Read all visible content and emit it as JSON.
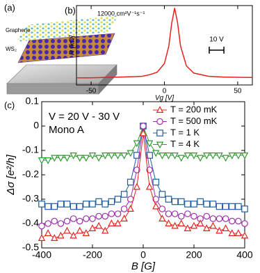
{
  "illustration": {
    "label": "(a)",
    "layers": [
      "Graphene",
      "WS₂"
    ]
  },
  "chart_data": [
    {
      "type": "line",
      "label": "(b)",
      "annotation": "12000 cm²V⁻¹s⁻¹",
      "scale_bar": {
        "value": 10,
        "label": "10 V"
      },
      "xlabel": "Vg [V]",
      "ylabel": "R [kΩ]",
      "x": [
        -60,
        -50,
        -40,
        -30,
        -20,
        -15,
        -10,
        -5,
        0,
        3,
        5,
        7,
        9,
        11,
        15,
        20,
        30,
        40,
        50,
        60
      ],
      "series": [
        {
          "name": null,
          "color": "#e8211c",
          "values": [
            0.09,
            0.09,
            0.095,
            0.1,
            0.105,
            0.11,
            0.13,
            0.16,
            0.27,
            0.49,
            0.78,
            0.97,
            0.78,
            0.49,
            0.24,
            0.15,
            0.11,
            0.1,
            0.096,
            0.094
          ]
        }
      ],
      "xlim": [
        -60,
        60
      ],
      "xticks": [
        -50,
        0,
        50
      ],
      "ylim": [
        0,
        1
      ]
    },
    {
      "type": "line",
      "label": "(c)",
      "annotations": [
        "V = 20 V - 30 V",
        "Mono A"
      ],
      "xlabel": "B [G]",
      "ylabel": "Δσ [e²/h]",
      "x": [
        -400,
        -375,
        -350,
        -325,
        -300,
        -275,
        -250,
        -225,
        -200,
        -175,
        -150,
        -125,
        -100,
        -75,
        -50,
        -25,
        0,
        25,
        50,
        75,
        100,
        125,
        150,
        175,
        200,
        225,
        250,
        275,
        300,
        325,
        350,
        375,
        400
      ],
      "series": [
        {
          "name": "T = 200 mK",
          "color": "#e8211c",
          "marker": "triangle-up",
          "values": [
            -0.46,
            -0.44,
            -0.46,
            -0.45,
            -0.43,
            -0.45,
            -0.43,
            -0.44,
            -0.42,
            -0.41,
            -0.43,
            -0.4,
            -0.4,
            -0.38,
            -0.34,
            -0.25,
            -0.03,
            -0.25,
            -0.33,
            -0.38,
            -0.4,
            -0.41,
            -0.4,
            -0.42,
            -0.41,
            -0.4,
            -0.42,
            -0.41,
            -0.43,
            -0.42,
            -0.44,
            -0.44,
            -0.45
          ]
        },
        {
          "name": "T = 500 mK",
          "color": "#9b2fae",
          "marker": "circle",
          "values": [
            -0.41,
            -0.4,
            -0.39,
            -0.4,
            -0.39,
            -0.38,
            -0.39,
            -0.38,
            -0.38,
            -0.37,
            -0.37,
            -0.36,
            -0.36,
            -0.34,
            -0.3,
            -0.18,
            0,
            -0.18,
            -0.3,
            -0.34,
            -0.36,
            -0.36,
            -0.37,
            -0.36,
            -0.37,
            -0.38,
            -0.37,
            -0.38,
            -0.38,
            -0.38,
            -0.39,
            -0.39,
            -0.4
          ]
        },
        {
          "name": "T = 1 K",
          "color": "#1f5b9e",
          "marker": "square",
          "values": [
            -0.32,
            -0.33,
            -0.33,
            -0.32,
            -0.32,
            -0.33,
            -0.33,
            -0.32,
            -0.32,
            -0.31,
            -0.32,
            -0.31,
            -0.3,
            -0.28,
            -0.23,
            -0.12,
            0,
            -0.12,
            -0.23,
            -0.28,
            -0.3,
            -0.31,
            -0.31,
            -0.32,
            -0.32,
            -0.31,
            -0.32,
            -0.32,
            -0.33,
            -0.33,
            -0.33,
            -0.33,
            -0.34
          ]
        },
        {
          "name": "T = 4 K",
          "color": "#2e9a2e",
          "marker": "triangle-down",
          "values": [
            -0.14,
            -0.14,
            -0.13,
            -0.13,
            -0.13,
            -0.12,
            -0.13,
            -0.13,
            -0.12,
            -0.13,
            -0.12,
            -0.12,
            -0.12,
            -0.12,
            -0.11,
            -0.07,
            0,
            -0.07,
            -0.11,
            -0.12,
            -0.12,
            -0.12,
            -0.13,
            -0.12,
            -0.12,
            -0.13,
            -0.12,
            -0.12,
            -0.12,
            -0.13,
            -0.12,
            -0.12,
            -0.12
          ]
        }
      ],
      "xlim": [
        -400,
        400
      ],
      "xticks": [
        -400,
        -200,
        0,
        200,
        400
      ],
      "ylim": [
        -0.5,
        0.1
      ],
      "yticks": [
        0.1,
        0,
        -0.1,
        -0.2,
        -0.3,
        -0.4,
        -0.5
      ],
      "legend": "upper right"
    }
  ]
}
